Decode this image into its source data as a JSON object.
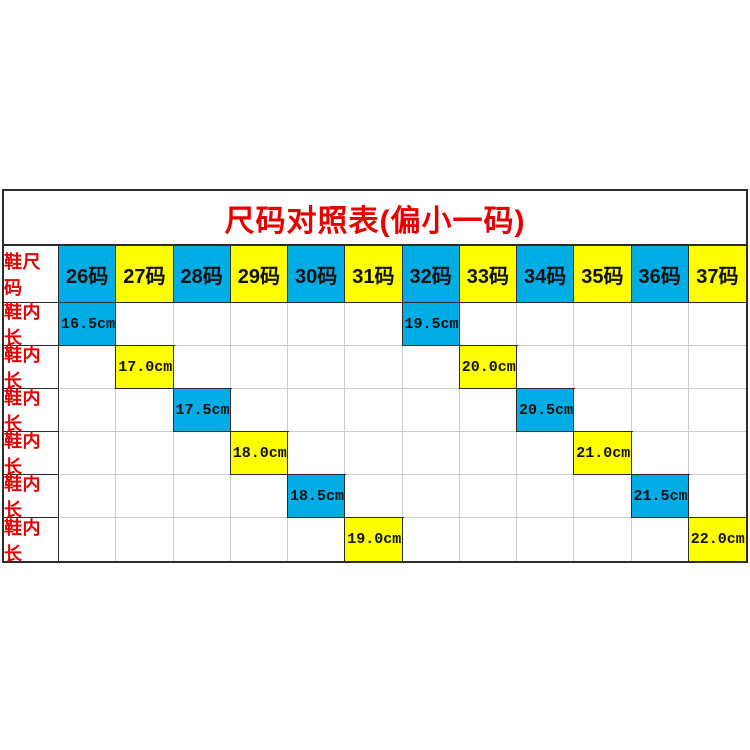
{
  "title": "尺码对照表(偏小一码)",
  "colors": {
    "blue": "#00ACE4",
    "yellow": "#FFFF00",
    "red": "#E60000",
    "grid_light": "#C8CDD3",
    "grid_dark": "#2B2B2B"
  },
  "table": {
    "corner_label": "鞋尺码",
    "row_label": "鞋内长",
    "columns": [
      {
        "label": "26码",
        "color": "blue"
      },
      {
        "label": "27码",
        "color": "yellow"
      },
      {
        "label": "28码",
        "color": "blue"
      },
      {
        "label": "29码",
        "color": "yellow"
      },
      {
        "label": "30码",
        "color": "blue"
      },
      {
        "label": "31码",
        "color": "yellow"
      },
      {
        "label": "32码",
        "color": "blue"
      },
      {
        "label": "33码",
        "color": "yellow"
      },
      {
        "label": "34码",
        "color": "blue"
      },
      {
        "label": "35码",
        "color": "yellow"
      },
      {
        "label": "36码",
        "color": "blue"
      },
      {
        "label": "37码",
        "color": "yellow"
      }
    ],
    "rows": [
      {
        "label": "鞋内长",
        "cells": [
          {
            "col": 0,
            "value": "16.5cm",
            "color": "blue"
          },
          {
            "col": 6,
            "value": "19.5cm",
            "color": "blue"
          }
        ]
      },
      {
        "label": "鞋内长",
        "cells": [
          {
            "col": 1,
            "value": "17.0cm",
            "color": "yellow"
          },
          {
            "col": 7,
            "value": "20.0cm",
            "color": "yellow"
          }
        ]
      },
      {
        "label": "鞋内长",
        "cells": [
          {
            "col": 2,
            "value": "17.5cm",
            "color": "blue"
          },
          {
            "col": 8,
            "value": "20.5cm",
            "color": "blue"
          }
        ]
      },
      {
        "label": "鞋内长",
        "cells": [
          {
            "col": 3,
            "value": "18.0cm",
            "color": "yellow"
          },
          {
            "col": 9,
            "value": "21.0cm",
            "color": "yellow"
          }
        ]
      },
      {
        "label": "鞋内长",
        "cells": [
          {
            "col": 4,
            "value": "18.5cm",
            "color": "blue"
          },
          {
            "col": 10,
            "value": "21.5cm",
            "color": "blue"
          }
        ]
      },
      {
        "label": "鞋内长",
        "cells": [
          {
            "col": 5,
            "value": "19.0cm",
            "color": "yellow"
          },
          {
            "col": 11,
            "value": "22.0cm",
            "color": "yellow"
          }
        ]
      }
    ]
  },
  "chart_data": {
    "type": "table",
    "title": "尺码对照表(偏小一码)",
    "row_header_label": "鞋尺码",
    "row_label": "鞋内长",
    "sizes": [
      "26码",
      "27码",
      "28码",
      "29码",
      "30码",
      "31码",
      "32码",
      "33码",
      "34码",
      "35码",
      "36码",
      "37码"
    ],
    "inner_lengths_cm": [
      16.5,
      17.0,
      17.5,
      18.0,
      18.5,
      19.0,
      19.5,
      20.0,
      20.5,
      21.0,
      21.5,
      22.0
    ],
    "cell_color_pattern": "even sizes blue, odd sizes yellow, values on diagonal"
  }
}
